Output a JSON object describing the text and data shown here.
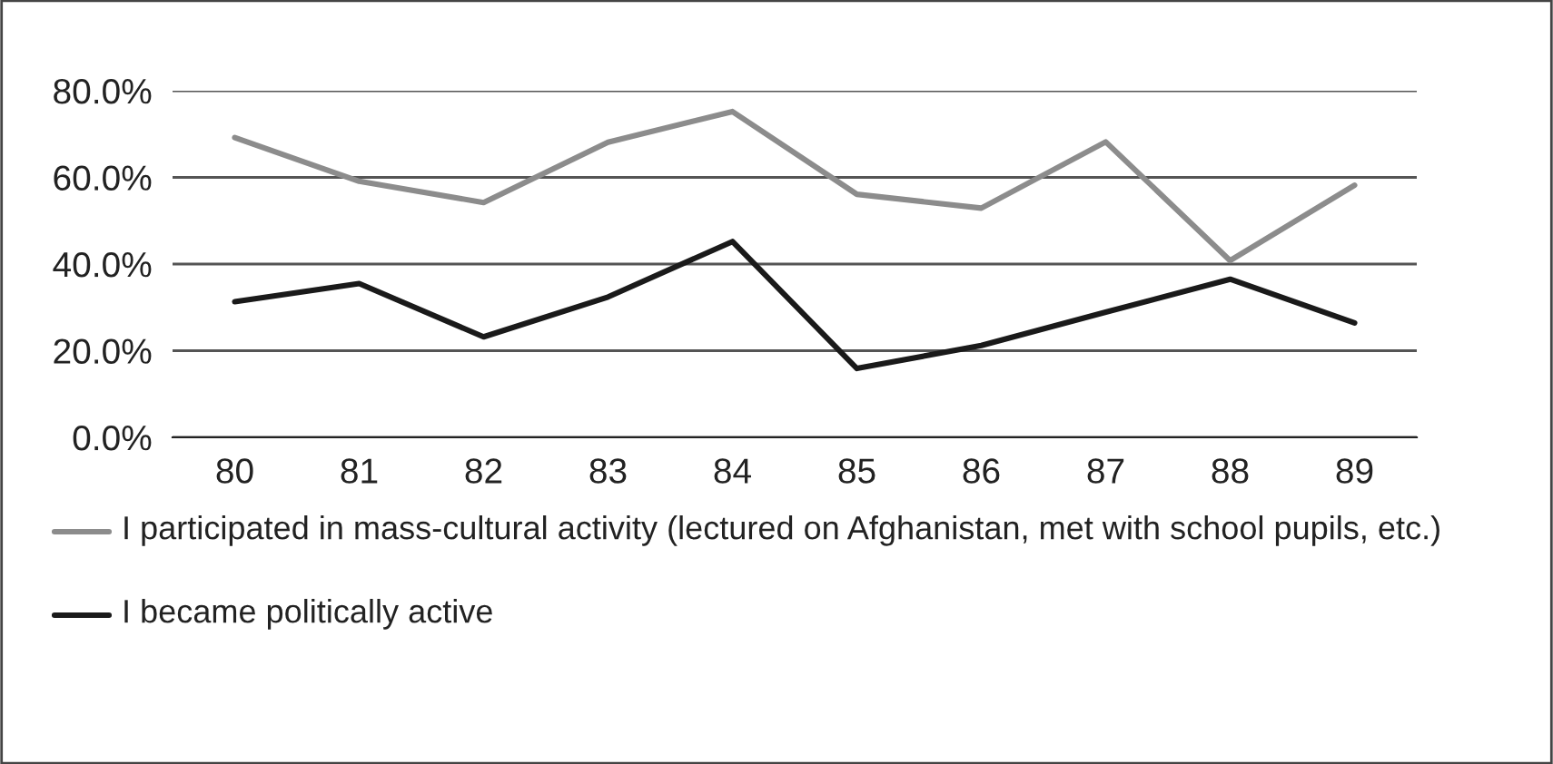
{
  "chart_data": {
    "type": "line",
    "categories": [
      "80",
      "81",
      "82",
      "83",
      "84",
      "85",
      "86",
      "87",
      "88",
      "89"
    ],
    "series": [
      {
        "name": "I participated in mass-cultural activity (lectured on Afghanistan, met with school pupils, etc.)",
        "color": "#8c8c8c",
        "values": [
          69.2,
          59.1,
          54.2,
          68.1,
          75.2,
          56.1,
          52.9,
          68.2,
          40.8,
          58.2
        ]
      },
      {
        "name": "I became politically active",
        "color": "#1a1a1a",
        "values": [
          31.3,
          35.5,
          23.2,
          32.4,
          45.2,
          15.9,
          21.2,
          28.9,
          36.5,
          26.4
        ]
      }
    ],
    "ylim": [
      0,
      80
    ],
    "yticks": [
      {
        "value": 0,
        "label": "0.0%"
      },
      {
        "value": 20,
        "label": "20.0%"
      },
      {
        "value": 40,
        "label": "40.0%"
      },
      {
        "value": 60,
        "label": "60.0%"
      },
      {
        "value": 80,
        "label": "80.0%"
      }
    ],
    "grid": "y",
    "legend": "bottom",
    "marker": "none",
    "line_style": "solid"
  }
}
